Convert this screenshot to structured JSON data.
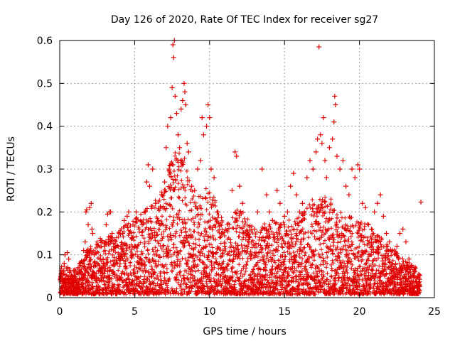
{
  "chart_data": {
    "type": "scatter",
    "title": "Day 126 of 2020, Rate Of TEC Index for receiver sg27",
    "xlabel": "GPS time / hours",
    "ylabel": "ROTI / TECUs",
    "xlim": [
      0,
      25
    ],
    "ylim": [
      0,
      0.6
    ],
    "x_ticks": [
      0,
      5,
      10,
      15,
      20,
      25
    ],
    "y_ticks": [
      0,
      0.1,
      0.2,
      0.3,
      0.4,
      0.5,
      0.6
    ],
    "y_tick_labels": [
      "0",
      "0.1",
      "0.2",
      "0.3",
      "0.4",
      "0.5",
      "0.6"
    ],
    "grid": true,
    "marker": "+",
    "color": "#e00000",
    "series": [
      {
        "points": [
          [
            0.05,
            0.012
          ],
          [
            0.1,
            0.02
          ],
          [
            0.15,
            0.04
          ],
          [
            0.2,
            0.015
          ],
          [
            0.25,
            0.06
          ],
          [
            0.3,
            0.08
          ],
          [
            0.35,
            0.1
          ],
          [
            0.4,
            0.03
          ],
          [
            0.5,
            0.105
          ],
          [
            0.55,
            0.07
          ],
          [
            0.6,
            0.09
          ],
          [
            0.7,
            0.04
          ],
          [
            0.8,
            0.05
          ],
          [
            0.9,
            0.03
          ],
          [
            1.0,
            0.02
          ],
          [
            1.1,
            0.035
          ],
          [
            1.2,
            0.03
          ],
          [
            1.3,
            0.045
          ],
          [
            1.4,
            0.06
          ],
          [
            1.5,
            0.08
          ],
          [
            1.6,
            0.11
          ],
          [
            1.7,
            0.13
          ],
          [
            1.75,
            0.2
          ],
          [
            1.8,
            0.205
          ],
          [
            1.9,
            0.17
          ],
          [
            2.0,
            0.21
          ],
          [
            2.1,
            0.22
          ],
          [
            2.15,
            0.16
          ],
          [
            2.2,
            0.15
          ],
          [
            2.3,
            0.1
          ],
          [
            2.5,
            0.08
          ],
          [
            2.7,
            0.06
          ],
          [
            2.9,
            0.09
          ],
          [
            3.0,
            0.12
          ],
          [
            3.1,
            0.17
          ],
          [
            3.2,
            0.195
          ],
          [
            3.3,
            0.2
          ],
          [
            3.4,
            0.2
          ],
          [
            3.5,
            0.15
          ],
          [
            3.6,
            0.12
          ],
          [
            3.8,
            0.09
          ],
          [
            4.0,
            0.1
          ],
          [
            4.2,
            0.15
          ],
          [
            4.3,
            0.18
          ],
          [
            4.5,
            0.19
          ],
          [
            4.6,
            0.2
          ],
          [
            4.8,
            0.14
          ],
          [
            5.0,
            0.12
          ],
          [
            5.1,
            0.2
          ],
          [
            5.3,
            0.16
          ],
          [
            5.5,
            0.17
          ],
          [
            5.7,
            0.2
          ],
          [
            5.8,
            0.27
          ],
          [
            5.9,
            0.31
          ],
          [
            6.0,
            0.26
          ],
          [
            6.2,
            0.3
          ],
          [
            6.4,
            0.22
          ],
          [
            6.6,
            0.18
          ],
          [
            6.8,
            0.24
          ],
          [
            7.0,
            0.27
          ],
          [
            7.1,
            0.35
          ],
          [
            7.2,
            0.4
          ],
          [
            7.3,
            0.3
          ],
          [
            7.4,
            0.42
          ],
          [
            7.5,
            0.49
          ],
          [
            7.55,
            0.59
          ],
          [
            7.6,
            0.56
          ],
          [
            7.65,
            0.6
          ],
          [
            7.7,
            0.47
          ],
          [
            7.8,
            0.43
          ],
          [
            7.9,
            0.38
          ],
          [
            8.0,
            0.35
          ],
          [
            8.1,
            0.44
          ],
          [
            8.2,
            0.46
          ],
          [
            8.3,
            0.5
          ],
          [
            8.35,
            0.48
          ],
          [
            8.4,
            0.45
          ],
          [
            8.5,
            0.36
          ],
          [
            8.6,
            0.34
          ],
          [
            8.8,
            0.26
          ],
          [
            9.0,
            0.25
          ],
          [
            9.2,
            0.3
          ],
          [
            9.4,
            0.32
          ],
          [
            9.5,
            0.42
          ],
          [
            9.6,
            0.38
          ],
          [
            9.8,
            0.4
          ],
          [
            9.9,
            0.45
          ],
          [
            10.0,
            0.42
          ],
          [
            10.1,
            0.3
          ],
          [
            10.3,
            0.28
          ],
          [
            10.5,
            0.2
          ],
          [
            10.8,
            0.15
          ],
          [
            11.0,
            0.12
          ],
          [
            11.2,
            0.17
          ],
          [
            11.5,
            0.25
          ],
          [
            11.7,
            0.34
          ],
          [
            11.8,
            0.33
          ],
          [
            12.0,
            0.26
          ],
          [
            12.2,
            0.22
          ],
          [
            12.5,
            0.15
          ],
          [
            12.8,
            0.13
          ],
          [
            13.0,
            0.16
          ],
          [
            13.2,
            0.2
          ],
          [
            13.5,
            0.3
          ],
          [
            13.8,
            0.24
          ],
          [
            14.0,
            0.2
          ],
          [
            14.2,
            0.18
          ],
          [
            14.5,
            0.25
          ],
          [
            14.7,
            0.22
          ],
          [
            15.0,
            0.19
          ],
          [
            15.2,
            0.2
          ],
          [
            15.4,
            0.26
          ],
          [
            15.6,
            0.29
          ],
          [
            15.8,
            0.24
          ],
          [
            16.0,
            0.2
          ],
          [
            16.2,
            0.22
          ],
          [
            16.5,
            0.28
          ],
          [
            16.7,
            0.32
          ],
          [
            16.9,
            0.3
          ],
          [
            17.1,
            0.34
          ],
          [
            17.2,
            0.37
          ],
          [
            17.4,
            0.38
          ],
          [
            17.5,
            0.36
          ],
          [
            17.6,
            0.42
          ],
          [
            17.7,
            0.32
          ],
          [
            17.8,
            0.28
          ],
          [
            18.0,
            0.35
          ],
          [
            18.2,
            0.37
          ],
          [
            18.3,
            0.41
          ],
          [
            18.35,
            0.47
          ],
          [
            18.4,
            0.45
          ],
          [
            18.5,
            0.33
          ],
          [
            18.7,
            0.3
          ],
          [
            18.9,
            0.32
          ],
          [
            19.1,
            0.26
          ],
          [
            19.3,
            0.24
          ],
          [
            19.5,
            0.3
          ],
          [
            19.7,
            0.28
          ],
          [
            19.9,
            0.31
          ],
          [
            20.0,
            0.3
          ],
          [
            20.2,
            0.22
          ],
          [
            20.4,
            0.21
          ],
          [
            20.6,
            0.17
          ],
          [
            20.8,
            0.16
          ],
          [
            21.0,
            0.2
          ],
          [
            21.2,
            0.22
          ],
          [
            21.4,
            0.24
          ],
          [
            21.6,
            0.19
          ],
          [
            21.8,
            0.15
          ],
          [
            22.0,
            0.13
          ],
          [
            22.2,
            0.11
          ],
          [
            22.5,
            0.12
          ],
          [
            22.7,
            0.15
          ],
          [
            22.9,
            0.16
          ],
          [
            23.1,
            0.13
          ],
          [
            23.3,
            0.09
          ],
          [
            23.5,
            0.07
          ],
          [
            23.7,
            0.06
          ],
          [
            23.9,
            0.05
          ],
          [
            24.0,
            0.03
          ],
          [
            24.1,
            0.223
          ],
          [
            17.3,
            0.585
          ]
        ]
      }
    ]
  }
}
